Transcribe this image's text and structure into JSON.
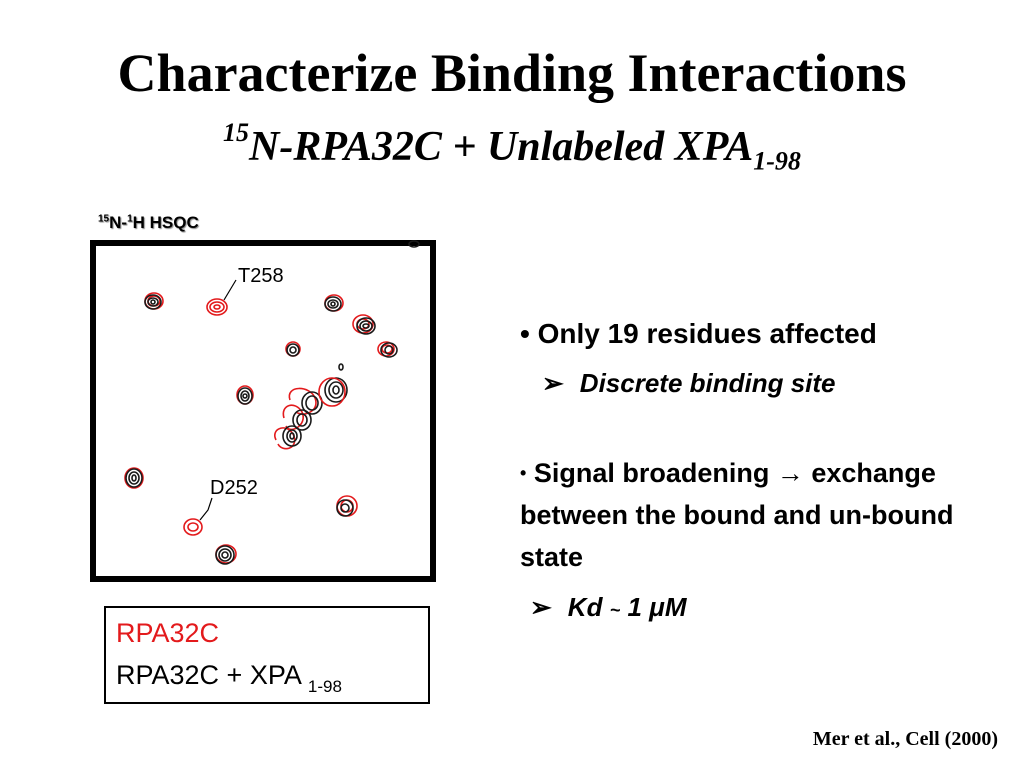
{
  "slide": {
    "title": "Characterize Binding Interactions",
    "subtitle": {
      "prefix_sup": "15",
      "main": "N-RPA32C + Unlabeled XPA",
      "suffix_sub": "1-98"
    },
    "hsqc_label": {
      "sup1": "15",
      "part1": "N-",
      "sup2": "1",
      "part2": "H HSQC"
    },
    "spectrum": {
      "annotations": [
        "T258",
        "D252"
      ],
      "colors": {
        "free": "#e31a1c",
        "bound": "#1a1a1a"
      }
    },
    "legend": {
      "line1": "RPA32C",
      "line2": "RPA32C + XPA",
      "line2_sub": "1-98",
      "line1_color": "#e31a1c"
    },
    "bullets": {
      "b1": {
        "marker": "•",
        "text": "Only 19 residues affected"
      },
      "b1_sub": {
        "marker": "➢",
        "text": "Discrete binding site"
      },
      "b2": {
        "marker": "•",
        "text_a": "Signal broadening",
        "arrow": "→",
        "text_b": "exchange between the bound and un-bound state"
      },
      "b2_sub": {
        "marker": "➢",
        "text_a": "Kd",
        "tilde": "~",
        "text_b": "1",
        "mu": "μ",
        "text_c": "M"
      }
    },
    "citation": "Mer et al., Cell (2000)"
  }
}
